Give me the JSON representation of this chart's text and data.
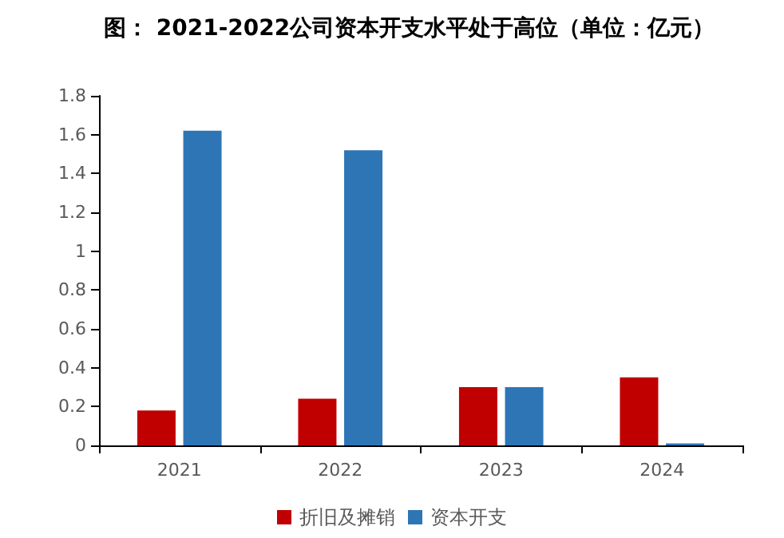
{
  "chart_data": {
    "type": "bar",
    "title": "图： 2021-2022公司资本开支水平处于高位（单位：亿元）",
    "categories": [
      "2021",
      "2022",
      "2023",
      "2024"
    ],
    "series": [
      {
        "name": "折旧及摊销",
        "color": "#c00000",
        "values": [
          0.18,
          0.24,
          0.3,
          0.35
        ]
      },
      {
        "name": "资本开支",
        "color": "#2e75b6",
        "values": [
          1.62,
          1.52,
          0.3,
          0.01
        ]
      }
    ],
    "ylim": [
      0,
      1.8
    ],
    "yticks": [
      0,
      0.2,
      0.4,
      0.6,
      0.8,
      1,
      1.2,
      1.4,
      1.6,
      1.8
    ],
    "grid": false,
    "legend": "bottom"
  }
}
